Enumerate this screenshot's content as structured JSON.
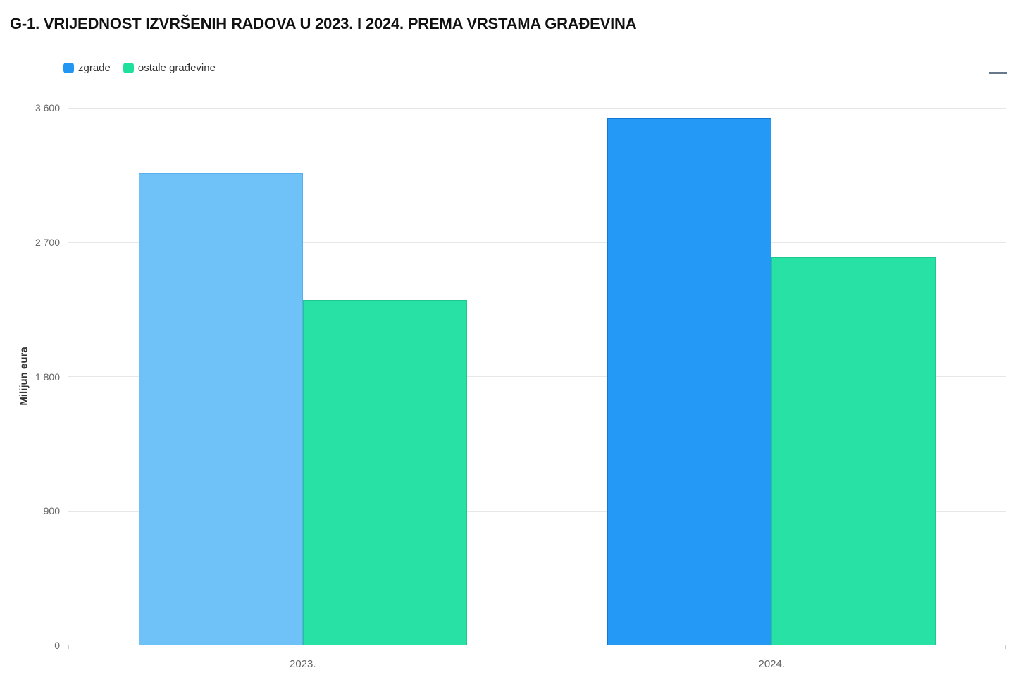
{
  "title": "G-1. VRIJEDNOST IZVRŠENIH RADOVA U 2023. I 2024. PREMA VRSTAMA GRAĐEVINA",
  "icons": {
    "menu": "hamburger-menu-icon"
  },
  "legend": [
    {
      "label": "zgrade",
      "color": "#2196f3"
    },
    {
      "label": "ostale građevine",
      "color": "#1fe09b"
    }
  ],
  "chart_data": {
    "type": "bar",
    "title": "G-1. VRIJEDNOST IZVRŠENIH RADOVA U 2023. I 2024. PREMA VRSTAMA GRAĐEVINA",
    "categories": [
      "2023.",
      "2024."
    ],
    "series": [
      {
        "name": "zgrade",
        "values": [
          3160,
          3530
        ],
        "colors": [
          "#6fc2f8",
          "#2499f5"
        ],
        "border_colors": [
          "#58aeee",
          "#1377d4"
        ]
      },
      {
        "name": "ostale građevine",
        "values": [
          2310,
          2600
        ],
        "colors": [
          "#27e2a4",
          "#27e2a4"
        ],
        "border_colors": [
          "#1ec78e",
          "#1ec78e"
        ]
      }
    ],
    "xlabel": "",
    "ylabel": "Milijun eura",
    "ylim": [
      0,
      3600
    ],
    "yticks": [
      0,
      900,
      1800,
      2700,
      3600
    ],
    "ytick_labels": [
      "0",
      "900",
      "1 800",
      "2 700",
      "3 600"
    ],
    "grid": true,
    "legend_position": "top-left"
  }
}
